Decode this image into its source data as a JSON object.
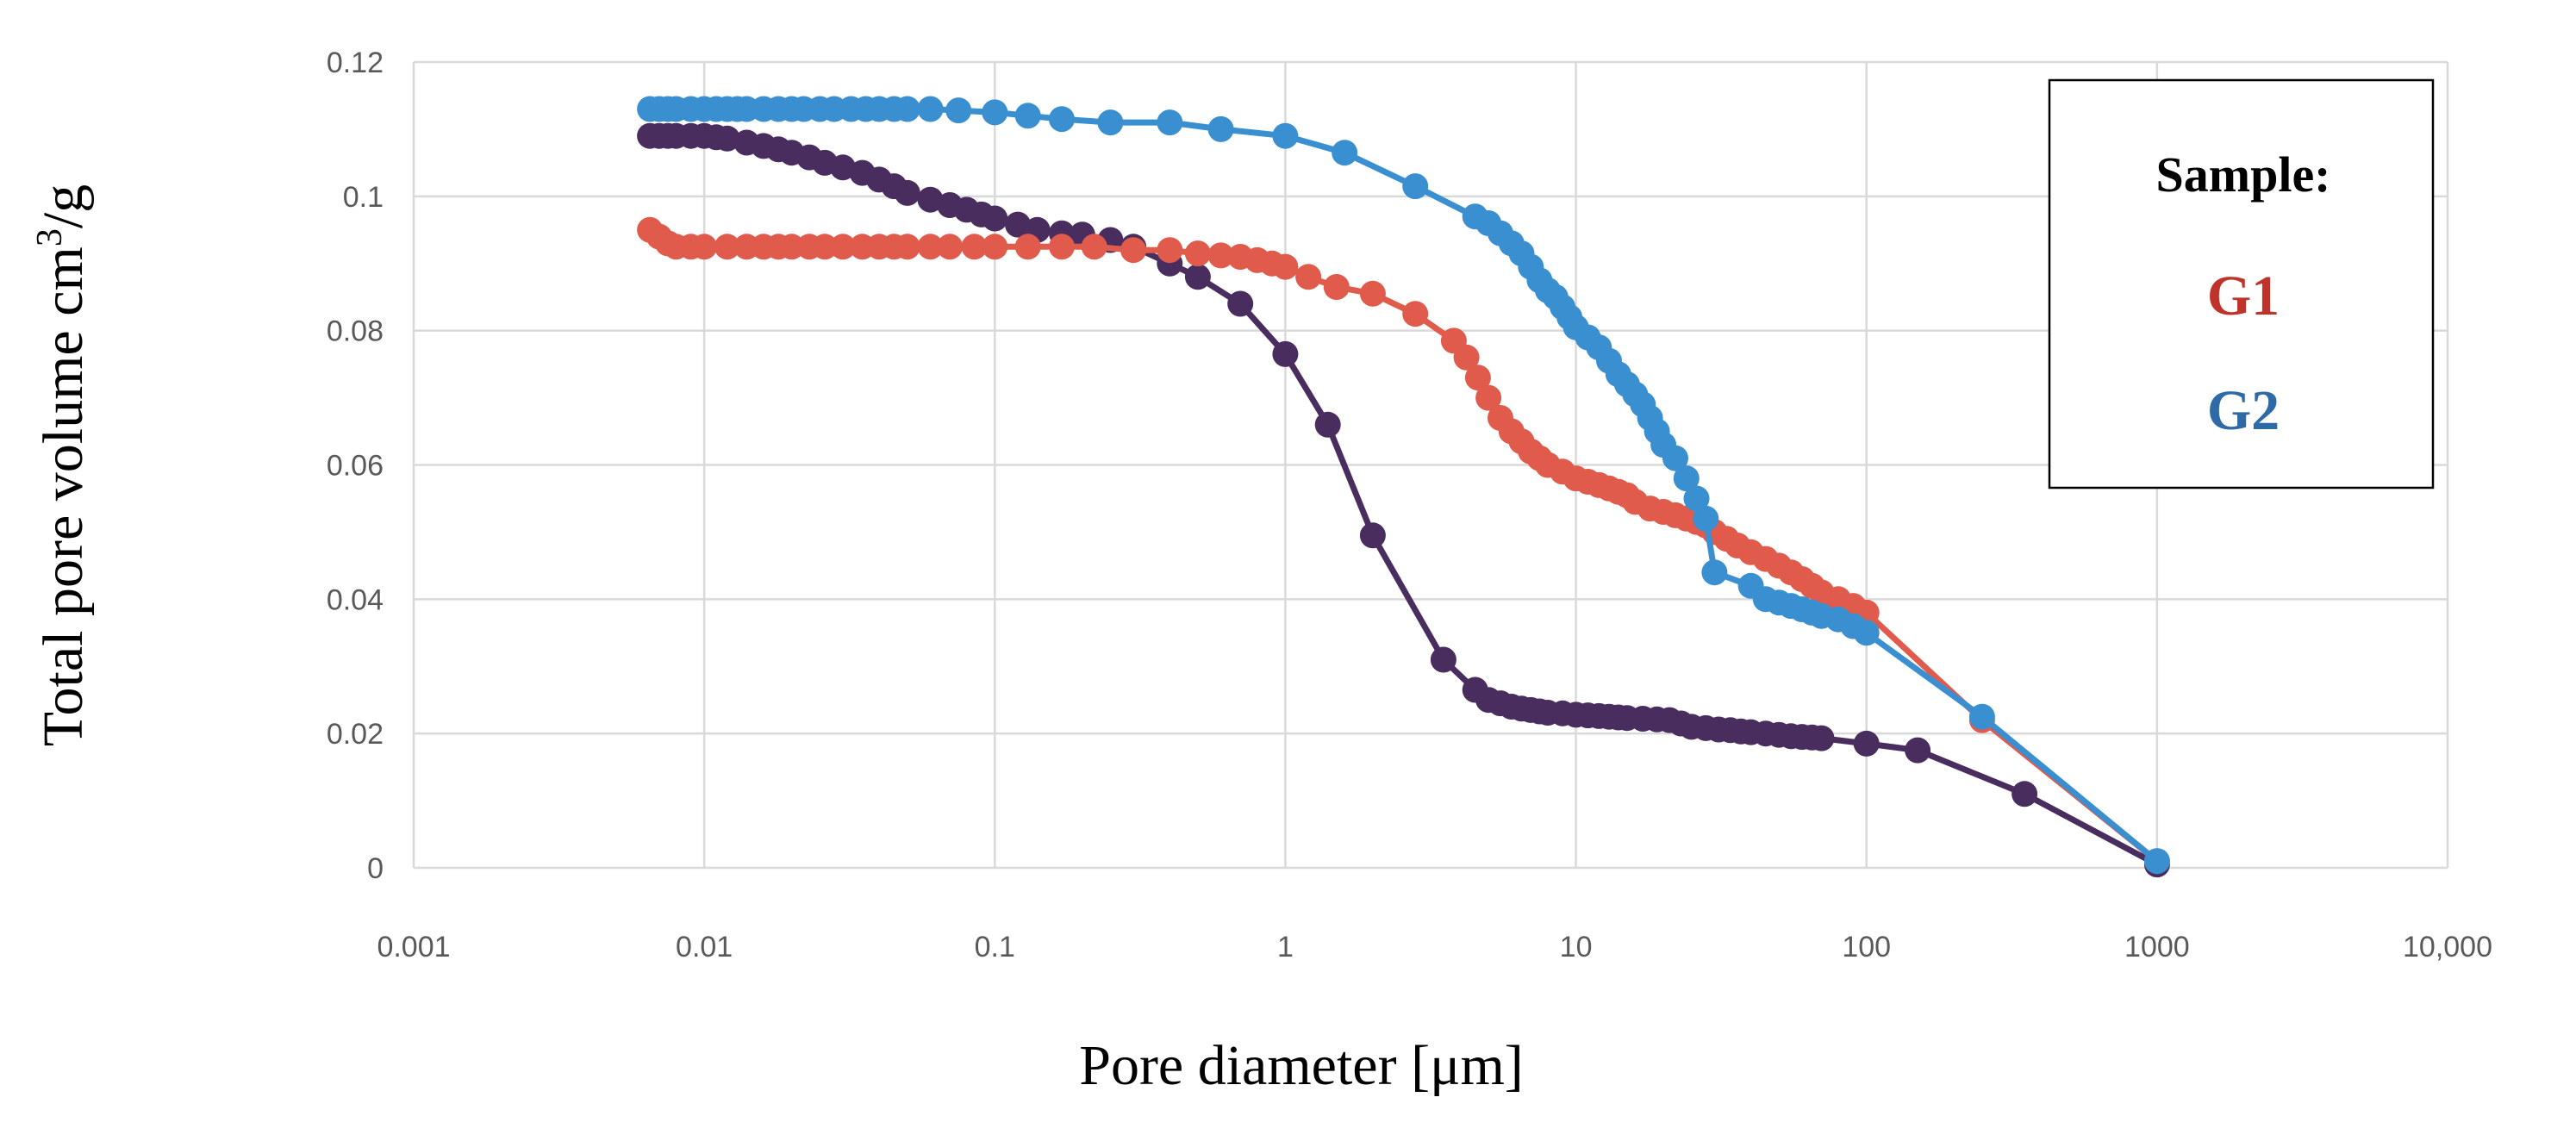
{
  "chart_data": {
    "type": "scatter",
    "title": "",
    "xlabel": "Pore diameter [μm]",
    "ylabel_main": "Total pore volume cm",
    "ylabel_sup": "3",
    "ylabel_tail": "/g",
    "xscale": "log",
    "xlim": [
      0.001,
      10000
    ],
    "ylim": [
      0,
      0.12
    ],
    "grid": true,
    "x_ticks": [
      {
        "value": 0.001,
        "label": "0.001"
      },
      {
        "value": 0.01,
        "label": "0.01"
      },
      {
        "value": 0.1,
        "label": "0.1"
      },
      {
        "value": 1,
        "label": "1"
      },
      {
        "value": 10,
        "label": "10"
      },
      {
        "value": 100,
        "label": "100"
      },
      {
        "value": 1000,
        "label": "1000"
      },
      {
        "value": 10000,
        "label": "10,000"
      }
    ],
    "y_ticks": [
      {
        "value": 0,
        "label": "0"
      },
      {
        "value": 0.02,
        "label": "0.02"
      },
      {
        "value": 0.04,
        "label": "0.04"
      },
      {
        "value": 0.06,
        "label": "0.06"
      },
      {
        "value": 0.08,
        "label": "0.08"
      },
      {
        "value": 0.1,
        "label": "0.1"
      },
      {
        "value": 0.12,
        "label": "0.12"
      }
    ],
    "legend": {
      "title": "Sample:",
      "entries": [
        {
          "label": "G1",
          "color": "#c0332b"
        },
        {
          "label": "G2",
          "color": "#2e6aa5"
        }
      ],
      "placement": "top-right"
    },
    "series": [
      {
        "name": "G1",
        "color": "#e05b4b",
        "x": [
          0.0065,
          0.007,
          0.0075,
          0.008,
          0.009,
          0.01,
          0.012,
          0.014,
          0.016,
          0.018,
          0.02,
          0.023,
          0.026,
          0.03,
          0.035,
          0.04,
          0.045,
          0.05,
          0.06,
          0.07,
          0.085,
          0.1,
          0.13,
          0.17,
          0.22,
          0.3,
          0.4,
          0.5,
          0.6,
          0.7,
          0.8,
          0.9,
          1.0,
          1.2,
          1.5,
          2.0,
          2.8,
          3.8,
          4.2,
          4.6,
          5.0,
          5.5,
          6.0,
          6.5,
          7.0,
          7.5,
          8.0,
          9.0,
          10,
          11,
          12,
          13,
          14,
          15,
          16,
          18,
          20,
          22,
          24,
          26,
          28,
          30,
          33,
          36,
          40,
          45,
          50,
          55,
          60,
          65,
          70,
          80,
          90,
          100,
          250,
          1000
        ],
        "y": [
          0.095,
          0.094,
          0.093,
          0.0925,
          0.0925,
          0.0925,
          0.0925,
          0.0925,
          0.0925,
          0.0925,
          0.0925,
          0.0925,
          0.0925,
          0.0925,
          0.0925,
          0.0925,
          0.0925,
          0.0925,
          0.0925,
          0.0925,
          0.0925,
          0.0925,
          0.0925,
          0.0925,
          0.0925,
          0.092,
          0.092,
          0.0915,
          0.0912,
          0.091,
          0.0905,
          0.09,
          0.0895,
          0.088,
          0.0865,
          0.0855,
          0.0825,
          0.0785,
          0.076,
          0.073,
          0.07,
          0.067,
          0.065,
          0.0635,
          0.062,
          0.061,
          0.06,
          0.059,
          0.058,
          0.0575,
          0.057,
          0.0565,
          0.056,
          0.0555,
          0.0545,
          0.0535,
          0.053,
          0.0525,
          0.052,
          0.0515,
          0.051,
          0.05,
          0.049,
          0.048,
          0.047,
          0.046,
          0.045,
          0.044,
          0.043,
          0.042,
          0.041,
          0.04,
          0.039,
          0.038,
          0.022,
          0.001
        ]
      },
      {
        "name": "G2",
        "color": "#3a8fd0",
        "x": [
          0.0065,
          0.007,
          0.0075,
          0.008,
          0.009,
          0.01,
          0.011,
          0.012,
          0.013,
          0.014,
          0.016,
          0.018,
          0.02,
          0.022,
          0.025,
          0.028,
          0.032,
          0.036,
          0.04,
          0.045,
          0.05,
          0.06,
          0.075,
          0.1,
          0.13,
          0.17,
          0.25,
          0.4,
          0.6,
          1.0,
          1.6,
          2.8,
          4.5,
          5.0,
          5.5,
          6.0,
          6.5,
          7.0,
          7.5,
          8.0,
          8.5,
          9.0,
          9.5,
          10,
          11,
          12,
          13,
          14,
          15,
          16,
          17,
          18,
          19,
          20,
          22,
          24,
          26,
          28,
          30,
          40,
          45,
          50,
          55,
          60,
          65,
          70,
          80,
          90,
          100,
          250,
          1000
        ],
        "y": [
          0.113,
          0.113,
          0.113,
          0.113,
          0.113,
          0.113,
          0.113,
          0.113,
          0.113,
          0.113,
          0.113,
          0.113,
          0.113,
          0.113,
          0.113,
          0.113,
          0.113,
          0.113,
          0.113,
          0.113,
          0.113,
          0.113,
          0.1128,
          0.1125,
          0.112,
          0.1115,
          0.111,
          0.111,
          0.11,
          0.109,
          0.1065,
          0.1015,
          0.097,
          0.096,
          0.0945,
          0.093,
          0.0915,
          0.0895,
          0.0875,
          0.086,
          0.085,
          0.0835,
          0.082,
          0.0805,
          0.079,
          0.0775,
          0.0755,
          0.0735,
          0.072,
          0.0705,
          0.069,
          0.067,
          0.065,
          0.063,
          0.061,
          0.058,
          0.055,
          0.052,
          0.044,
          0.042,
          0.04,
          0.0395,
          0.039,
          0.0385,
          0.038,
          0.0375,
          0.037,
          0.036,
          0.035,
          0.0225,
          0.001
        ]
      },
      {
        "name": "",
        "color": "#4a2d5f",
        "x": [
          0.0065,
          0.007,
          0.0075,
          0.008,
          0.009,
          0.01,
          0.011,
          0.012,
          0.014,
          0.016,
          0.018,
          0.02,
          0.023,
          0.026,
          0.03,
          0.035,
          0.04,
          0.045,
          0.05,
          0.06,
          0.07,
          0.08,
          0.09,
          0.1,
          0.12,
          0.14,
          0.17,
          0.2,
          0.25,
          0.3,
          0.4,
          0.5,
          0.7,
          1.0,
          1.4,
          2.0,
          3.5,
          4.5,
          5.0,
          5.5,
          6.0,
          6.5,
          7.0,
          7.5,
          8.0,
          9.0,
          10,
          11,
          12,
          13,
          14,
          15,
          17,
          19,
          21,
          23,
          25,
          28,
          31,
          34,
          37,
          40,
          45,
          50,
          55,
          60,
          65,
          70,
          100,
          150,
          350,
          1000
        ],
        "y": [
          0.109,
          0.109,
          0.109,
          0.109,
          0.109,
          0.109,
          0.1088,
          0.1086,
          0.108,
          0.1075,
          0.107,
          0.1065,
          0.1058,
          0.105,
          0.1043,
          0.1035,
          0.1025,
          0.1015,
          0.1005,
          0.0995,
          0.0987,
          0.098,
          0.0973,
          0.0967,
          0.0958,
          0.095,
          0.0945,
          0.0943,
          0.0935,
          0.0925,
          0.09,
          0.088,
          0.084,
          0.0765,
          0.066,
          0.0495,
          0.031,
          0.0265,
          0.025,
          0.0245,
          0.024,
          0.0237,
          0.0235,
          0.0233,
          0.0231,
          0.023,
          0.0228,
          0.0227,
          0.0226,
          0.0225,
          0.0224,
          0.0223,
          0.0222,
          0.0221,
          0.022,
          0.0215,
          0.021,
          0.0208,
          0.0206,
          0.0205,
          0.0203,
          0.0202,
          0.02,
          0.0198,
          0.0196,
          0.0195,
          0.0194,
          0.0193,
          0.0185,
          0.0175,
          0.011,
          0.0005
        ]
      }
    ]
  }
}
